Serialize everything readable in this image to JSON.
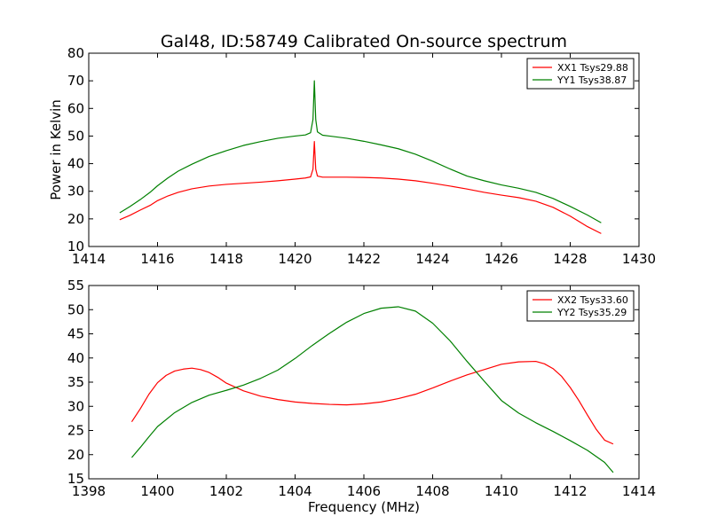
{
  "chart_data": [
    {
      "type": "line",
      "title": "Gal48, ID:58749 Calibrated On-source spectrum",
      "xlabel": "",
      "ylabel": "Power in Kelvin",
      "xlim": [
        1414,
        1430
      ],
      "ylim": [
        10,
        80
      ],
      "xticks": [
        1414,
        1416,
        1418,
        1420,
        1422,
        1424,
        1426,
        1428,
        1430
      ],
      "yticks": [
        10,
        20,
        30,
        40,
        50,
        60,
        70,
        80
      ],
      "legend_position": "top-right",
      "grid": false,
      "series": [
        {
          "name": "XX1 Tsys29.88",
          "color": "#ff0000",
          "points": [
            [
              1414.9,
              19.7
            ],
            [
              1415.2,
              21.3
            ],
            [
              1415.5,
              23.2
            ],
            [
              1415.8,
              25.0
            ],
            [
              1416.0,
              26.6
            ],
            [
              1416.3,
              28.3
            ],
            [
              1416.6,
              29.6
            ],
            [
              1417.0,
              30.9
            ],
            [
              1417.5,
              31.9
            ],
            [
              1418.0,
              32.5
            ],
            [
              1418.5,
              32.9
            ],
            [
              1419.0,
              33.3
            ],
            [
              1419.5,
              33.8
            ],
            [
              1420.0,
              34.4
            ],
            [
              1420.3,
              34.8
            ],
            [
              1420.45,
              35.2
            ],
            [
              1420.52,
              38.0
            ],
            [
              1420.56,
              48.0
            ],
            [
              1420.6,
              38.0
            ],
            [
              1420.65,
              35.5
            ],
            [
              1420.8,
              35.1
            ],
            [
              1421.0,
              35.1
            ],
            [
              1421.5,
              35.1
            ],
            [
              1422.0,
              35.0
            ],
            [
              1422.5,
              34.8
            ],
            [
              1423.0,
              34.4
            ],
            [
              1423.5,
              33.8
            ],
            [
              1424.0,
              32.9
            ],
            [
              1424.5,
              31.9
            ],
            [
              1425.0,
              30.8
            ],
            [
              1425.5,
              29.6
            ],
            [
              1426.0,
              28.6
            ],
            [
              1426.5,
              27.7
            ],
            [
              1427.0,
              26.4
            ],
            [
              1427.5,
              24.2
            ],
            [
              1428.0,
              21.0
            ],
            [
              1428.5,
              17.2
            ],
            [
              1428.9,
              14.7
            ]
          ]
        },
        {
          "name": "YY1 Tsys38.87",
          "color": "#008000",
          "points": [
            [
              1414.9,
              22.2
            ],
            [
              1415.2,
              24.5
            ],
            [
              1415.5,
              27.0
            ],
            [
              1415.8,
              29.8
            ],
            [
              1416.0,
              32.0
            ],
            [
              1416.3,
              34.8
            ],
            [
              1416.6,
              37.3
            ],
            [
              1417.0,
              39.8
            ],
            [
              1417.5,
              42.6
            ],
            [
              1418.0,
              44.7
            ],
            [
              1418.5,
              46.6
            ],
            [
              1419.0,
              48.0
            ],
            [
              1419.5,
              49.2
            ],
            [
              1420.0,
              50.0
            ],
            [
              1420.3,
              50.4
            ],
            [
              1420.45,
              51.2
            ],
            [
              1420.52,
              56.0
            ],
            [
              1420.56,
              70.0
            ],
            [
              1420.6,
              56.0
            ],
            [
              1420.65,
              51.5
            ],
            [
              1420.8,
              50.3
            ],
            [
              1421.0,
              50.0
            ],
            [
              1421.5,
              49.2
            ],
            [
              1422.0,
              48.1
            ],
            [
              1422.5,
              46.8
            ],
            [
              1423.0,
              45.4
            ],
            [
              1423.5,
              43.4
            ],
            [
              1424.0,
              40.9
            ],
            [
              1424.5,
              38.1
            ],
            [
              1425.0,
              35.5
            ],
            [
              1425.5,
              33.8
            ],
            [
              1426.0,
              32.3
            ],
            [
              1426.5,
              31.1
            ],
            [
              1427.0,
              29.6
            ],
            [
              1427.5,
              27.4
            ],
            [
              1428.0,
              24.5
            ],
            [
              1428.5,
              21.4
            ],
            [
              1428.9,
              18.6
            ]
          ]
        }
      ]
    },
    {
      "type": "line",
      "title": "",
      "xlabel": "Frequency (MHz)",
      "ylabel": "",
      "xlim": [
        1398,
        1414
      ],
      "ylim": [
        15,
        55
      ],
      "xticks": [
        1398,
        1400,
        1402,
        1404,
        1406,
        1408,
        1410,
        1412,
        1414
      ],
      "yticks": [
        15,
        20,
        25,
        30,
        35,
        40,
        45,
        50,
        55
      ],
      "legend_position": "top-right",
      "grid": false,
      "series": [
        {
          "name": "XX2 Tsys33.60",
          "color": "#ff0000",
          "points": [
            [
              1399.25,
              26.8
            ],
            [
              1399.5,
              29.5
            ],
            [
              1399.75,
              32.5
            ],
            [
              1400.0,
              34.9
            ],
            [
              1400.25,
              36.4
            ],
            [
              1400.5,
              37.3
            ],
            [
              1400.75,
              37.7
            ],
            [
              1401.0,
              37.9
            ],
            [
              1401.25,
              37.6
            ],
            [
              1401.5,
              37.0
            ],
            [
              1401.75,
              36.0
            ],
            [
              1402.0,
              34.8
            ],
            [
              1402.5,
              33.2
            ],
            [
              1403.0,
              32.1
            ],
            [
              1403.5,
              31.4
            ],
            [
              1404.0,
              30.9
            ],
            [
              1404.5,
              30.6
            ],
            [
              1405.0,
              30.4
            ],
            [
              1405.5,
              30.3
            ],
            [
              1406.0,
              30.5
            ],
            [
              1406.5,
              30.9
            ],
            [
              1407.0,
              31.6
            ],
            [
              1407.5,
              32.5
            ],
            [
              1408.0,
              33.8
            ],
            [
              1408.5,
              35.2
            ],
            [
              1409.0,
              36.5
            ],
            [
              1409.5,
              37.6
            ],
            [
              1410.0,
              38.7
            ],
            [
              1410.5,
              39.2
            ],
            [
              1411.0,
              39.3
            ],
            [
              1411.25,
              38.8
            ],
            [
              1411.5,
              37.8
            ],
            [
              1411.75,
              36.2
            ],
            [
              1412.0,
              33.9
            ],
            [
              1412.25,
              31.2
            ],
            [
              1412.5,
              28.2
            ],
            [
              1412.75,
              25.3
            ],
            [
              1413.0,
              23.0
            ],
            [
              1413.25,
              22.2
            ]
          ]
        },
        {
          "name": "YY2 Tsys35.29",
          "color": "#008000",
          "points": [
            [
              1399.25,
              19.4
            ],
            [
              1399.5,
              21.5
            ],
            [
              1399.75,
              23.7
            ],
            [
              1400.0,
              25.8
            ],
            [
              1400.5,
              28.7
            ],
            [
              1401.0,
              30.8
            ],
            [
              1401.5,
              32.3
            ],
            [
              1402.0,
              33.3
            ],
            [
              1402.5,
              34.4
            ],
            [
              1403.0,
              35.8
            ],
            [
              1403.5,
              37.5
            ],
            [
              1404.0,
              39.9
            ],
            [
              1404.5,
              42.6
            ],
            [
              1405.0,
              45.1
            ],
            [
              1405.5,
              47.4
            ],
            [
              1406.0,
              49.2
            ],
            [
              1406.5,
              50.3
            ],
            [
              1407.0,
              50.6
            ],
            [
              1407.5,
              49.7
            ],
            [
              1408.0,
              47.2
            ],
            [
              1408.5,
              43.6
            ],
            [
              1409.0,
              39.3
            ],
            [
              1409.5,
              35.2
            ],
            [
              1410.0,
              31.2
            ],
            [
              1410.5,
              28.6
            ],
            [
              1411.0,
              26.6
            ],
            [
              1411.5,
              24.8
            ],
            [
              1412.0,
              22.9
            ],
            [
              1412.5,
              20.9
            ],
            [
              1413.0,
              18.4
            ],
            [
              1413.25,
              16.3
            ]
          ]
        }
      ]
    }
  ]
}
